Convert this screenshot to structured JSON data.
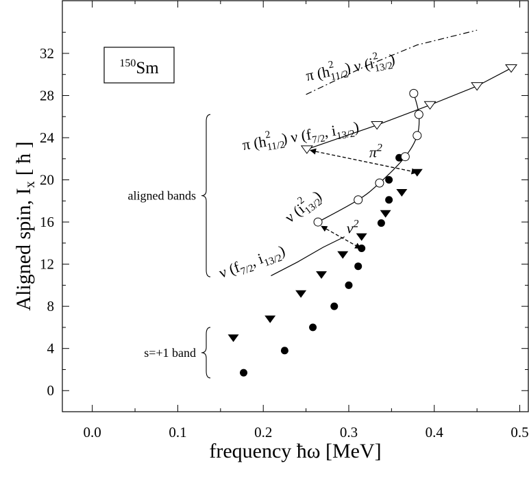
{
  "chart_data": {
    "type": "scatter",
    "xlabel": "frequency  ħω [MeV]",
    "ylabel": "Aligned spin, I",
    "ylabel_sub": "x",
    "ylabel_unit": "[ ħ ]",
    "xlim": [
      -0.035,
      0.51
    ],
    "ylim": [
      -2,
      37
    ],
    "x_ticks": [
      0.0,
      0.1,
      0.2,
      0.3,
      0.4,
      0.5
    ],
    "x_tick_labels": [
      "0.0",
      "0.1",
      "0.2",
      "0.3",
      "0.4",
      "0.5"
    ],
    "y_ticks": [
      0,
      4,
      8,
      12,
      16,
      20,
      24,
      28,
      32
    ],
    "y_tick_labels": [
      "0",
      "4",
      "8",
      "12",
      "16",
      "20",
      "24",
      "28",
      "32"
    ],
    "grid": false,
    "nucleus": {
      "mass": "150",
      "symbol": "Sm"
    },
    "series": [
      {
        "marker": "filled-circle",
        "color": "#000000",
        "points": [
          [
            0.177,
            1.7
          ],
          [
            0.225,
            3.8
          ],
          [
            0.258,
            6.0
          ],
          [
            0.283,
            8.0
          ],
          [
            0.3,
            10.0
          ],
          [
            0.311,
            11.8
          ],
          [
            0.315,
            13.5
          ],
          [
            0.338,
            15.9
          ],
          [
            0.347,
            18.1
          ],
          [
            0.347,
            20.0
          ],
          [
            0.359,
            22.1
          ]
        ]
      },
      {
        "marker": "filled-triangle-down",
        "color": "#000000",
        "points": [
          [
            0.165,
            5.0
          ],
          [
            0.208,
            6.8
          ],
          [
            0.244,
            9.2
          ],
          [
            0.268,
            11.0
          ],
          [
            0.293,
            12.9
          ],
          [
            0.315,
            14.6
          ],
          [
            0.343,
            16.8
          ],
          [
            0.362,
            18.8
          ],
          [
            0.38,
            20.7
          ]
        ]
      },
      {
        "marker": "open-circle",
        "color": "#000000",
        "curve": "smooth",
        "points": [
          [
            0.264,
            16.0
          ],
          [
            0.311,
            18.1
          ],
          [
            0.336,
            19.7
          ],
          [
            0.366,
            22.2
          ],
          [
            0.38,
            24.2
          ],
          [
            0.382,
            26.2
          ],
          [
            0.376,
            28.2
          ]
        ]
      },
      {
        "marker": "open-triangle-down",
        "color": "#000000",
        "curve": "line",
        "points": [
          [
            0.251,
            22.9
          ],
          [
            0.333,
            25.2
          ],
          [
            0.395,
            27.1
          ],
          [
            0.45,
            28.9
          ],
          [
            0.49,
            30.6
          ]
        ]
      },
      {
        "marker": "none",
        "color": "#000000",
        "curve": "line",
        "points": [
          [
            0.209,
            10.9
          ],
          [
            0.24,
            12.2
          ],
          [
            0.27,
            13.6
          ],
          [
            0.295,
            14.6
          ]
        ]
      },
      {
        "marker": "none",
        "color": "#000000",
        "curve": "dash-dot",
        "points": [
          [
            0.25,
            28.1
          ],
          [
            0.32,
            30.8
          ],
          [
            0.38,
            32.8
          ],
          [
            0.45,
            34.2
          ]
        ]
      }
    ],
    "arrows": [
      {
        "label": "π",
        "label_sup": "2",
        "from": [
          0.255,
          22.8
        ],
        "to": [
          0.38,
          20.7
        ]
      },
      {
        "label": "ν",
        "label_sup": "2",
        "from": [
          0.268,
          15.6
        ],
        "to": [
          0.314,
          13.5
        ]
      }
    ],
    "brackets": [
      {
        "label": "aligned bands",
        "from": 10.8,
        "to": 26.2
      },
      {
        "label": "s=+1 band",
        "from": 1.2,
        "to": 6.0
      }
    ],
    "annotations": [
      {
        "id": "pi-h-nu-i",
        "parts": [
          "π (h",
          "11/2",
          "2",
          ") ν (i",
          "13/2",
          "2",
          ")"
        ]
      },
      {
        "id": "pi-h-nu-fi",
        "parts": [
          "π (h",
          "11/2",
          "2",
          ") ν (f",
          "7/2",
          ", i",
          "13/2",
          ")"
        ]
      },
      {
        "id": "nu-i",
        "parts": [
          "ν (i",
          "13/2",
          "2",
          ")"
        ]
      },
      {
        "id": "nu-fi",
        "parts": [
          "ν (f",
          "7/2",
          ", i",
          "13/2",
          ")"
        ]
      }
    ]
  }
}
